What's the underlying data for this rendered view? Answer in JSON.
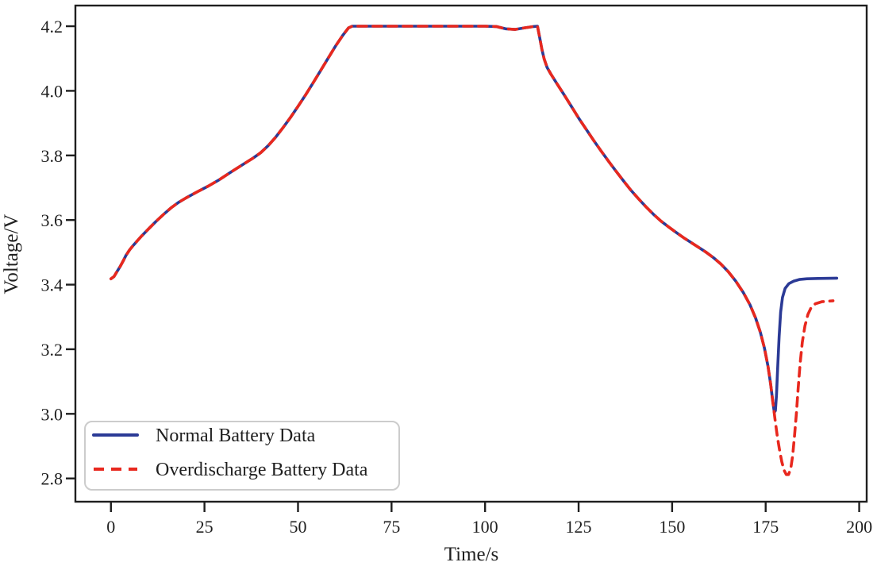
{
  "chart_data": {
    "type": "line",
    "title": "",
    "xlabel": "Time/s",
    "ylabel": "Voltage/V",
    "xlim": [
      -9.5,
      202
    ],
    "ylim": [
      2.728,
      4.264
    ],
    "xticks": [
      0,
      25,
      50,
      75,
      100,
      125,
      150,
      175,
      200
    ],
    "xtick_labels": [
      "0",
      "25",
      "50",
      "75",
      "100",
      "125",
      "150",
      "175",
      "200"
    ],
    "yticks": [
      2.8,
      3.0,
      3.2,
      3.4,
      3.6,
      3.8,
      4.0,
      4.2
    ],
    "ytick_labels": [
      "2.8",
      "3.0",
      "3.2",
      "3.4",
      "3.6",
      "3.8",
      "4.0",
      "4.2"
    ],
    "grid": false,
    "legend": {
      "position": "lower-left",
      "entries": [
        "Normal Battery Data",
        "Overdischarge Battery Data"
      ]
    },
    "colors": {
      "axis": "#1f1f1f",
      "background": "#ffffff",
      "legend_border": "#cccccc"
    },
    "series": [
      {
        "name": "Normal Battery Data",
        "color": "#2b3a96",
        "line_style": "solid",
        "points": [
          [
            0,
            3.418
          ],
          [
            0.8,
            3.425
          ],
          [
            1.6,
            3.44
          ],
          [
            2.4,
            3.455
          ],
          [
            3.2,
            3.472
          ],
          [
            4,
            3.49
          ],
          [
            5,
            3.508
          ],
          [
            6,
            3.522
          ],
          [
            7,
            3.535
          ],
          [
            8,
            3.548
          ],
          [
            10,
            3.572
          ],
          [
            12,
            3.595
          ],
          [
            14,
            3.617
          ],
          [
            16,
            3.637
          ],
          [
            18,
            3.654
          ],
          [
            20,
            3.668
          ],
          [
            23,
            3.687
          ],
          [
            26,
            3.705
          ],
          [
            29,
            3.725
          ],
          [
            32,
            3.748
          ],
          [
            35,
            3.77
          ],
          [
            38,
            3.792
          ],
          [
            40,
            3.808
          ],
          [
            42,
            3.83
          ],
          [
            44,
            3.856
          ],
          [
            46,
            3.886
          ],
          [
            48,
            3.918
          ],
          [
            50,
            3.952
          ],
          [
            52,
            3.987
          ],
          [
            54,
            4.024
          ],
          [
            56,
            4.062
          ],
          [
            58,
            4.1
          ],
          [
            60,
            4.138
          ],
          [
            62,
            4.172
          ],
          [
            63.5,
            4.195
          ],
          [
            64.5,
            4.2
          ],
          [
            70,
            4.2
          ],
          [
            80,
            4.2
          ],
          [
            90,
            4.2
          ],
          [
            100,
            4.2
          ],
          [
            103,
            4.199
          ],
          [
            105.5,
            4.192
          ],
          [
            108,
            4.19
          ],
          [
            110.5,
            4.195
          ],
          [
            113,
            4.199
          ],
          [
            114,
            4.2
          ],
          [
            114.6,
            4.165
          ],
          [
            115.2,
            4.128
          ],
          [
            115.8,
            4.098
          ],
          [
            116.6,
            4.072
          ],
          [
            117.6,
            4.052
          ],
          [
            119,
            4.026
          ],
          [
            121,
            3.99
          ],
          [
            123,
            3.953
          ],
          [
            125,
            3.916
          ],
          [
            127,
            3.881
          ],
          [
            129,
            3.847
          ],
          [
            131,
            3.814
          ],
          [
            133,
            3.782
          ],
          [
            135,
            3.751
          ],
          [
            137,
            3.721
          ],
          [
            139,
            3.692
          ],
          [
            141,
            3.666
          ],
          [
            143,
            3.641
          ],
          [
            145,
            3.618
          ],
          [
            147,
            3.597
          ],
          [
            149,
            3.579
          ],
          [
            151,
            3.562
          ],
          [
            153,
            3.546
          ],
          [
            155,
            3.531
          ],
          [
            157,
            3.516
          ],
          [
            159,
            3.501
          ],
          [
            161,
            3.484
          ],
          [
            163,
            3.464
          ],
          [
            165,
            3.44
          ],
          [
            167,
            3.411
          ],
          [
            169,
            3.376
          ],
          [
            170.8,
            3.338
          ],
          [
            172.3,
            3.297
          ],
          [
            173.6,
            3.252
          ],
          [
            174.7,
            3.202
          ],
          [
            175.6,
            3.148
          ],
          [
            176.3,
            3.094
          ],
          [
            176.9,
            3.038
          ],
          [
            177.3,
            3.005
          ],
          [
            177.6,
            3.01
          ],
          [
            177.9,
            3.06
          ],
          [
            178.2,
            3.14
          ],
          [
            178.6,
            3.24
          ],
          [
            179,
            3.315
          ],
          [
            179.5,
            3.36
          ],
          [
            180.2,
            3.388
          ],
          [
            181.2,
            3.403
          ],
          [
            182.5,
            3.411
          ],
          [
            184,
            3.416
          ],
          [
            186,
            3.418
          ],
          [
            189,
            3.419
          ],
          [
            194,
            3.42
          ]
        ]
      },
      {
        "name": "Overdischarge Battery Data",
        "color": "#e8281e",
        "line_style": "dashed",
        "points": [
          [
            0,
            3.418
          ],
          [
            0.8,
            3.425
          ],
          [
            1.6,
            3.44
          ],
          [
            2.4,
            3.455
          ],
          [
            3.2,
            3.472
          ],
          [
            4,
            3.49
          ],
          [
            5,
            3.508
          ],
          [
            6,
            3.522
          ],
          [
            7,
            3.535
          ],
          [
            8,
            3.548
          ],
          [
            10,
            3.572
          ],
          [
            12,
            3.595
          ],
          [
            14,
            3.617
          ],
          [
            16,
            3.637
          ],
          [
            18,
            3.654
          ],
          [
            20,
            3.668
          ],
          [
            23,
            3.687
          ],
          [
            26,
            3.705
          ],
          [
            29,
            3.725
          ],
          [
            32,
            3.748
          ],
          [
            35,
            3.77
          ],
          [
            38,
            3.792
          ],
          [
            40,
            3.808
          ],
          [
            42,
            3.83
          ],
          [
            44,
            3.856
          ],
          [
            46,
            3.886
          ],
          [
            48,
            3.918
          ],
          [
            50,
            3.952
          ],
          [
            52,
            3.987
          ],
          [
            54,
            4.024
          ],
          [
            56,
            4.062
          ],
          [
            58,
            4.1
          ],
          [
            60,
            4.138
          ],
          [
            62,
            4.172
          ],
          [
            63.5,
            4.195
          ],
          [
            64.5,
            4.2
          ],
          [
            70,
            4.2
          ],
          [
            80,
            4.2
          ],
          [
            90,
            4.2
          ],
          [
            100,
            4.2
          ],
          [
            103,
            4.199
          ],
          [
            105.5,
            4.192
          ],
          [
            108,
            4.19
          ],
          [
            110.5,
            4.195
          ],
          [
            113,
            4.199
          ],
          [
            114,
            4.2
          ],
          [
            114.6,
            4.165
          ],
          [
            115.2,
            4.128
          ],
          [
            115.8,
            4.098
          ],
          [
            116.6,
            4.072
          ],
          [
            117.6,
            4.052
          ],
          [
            119,
            4.026
          ],
          [
            121,
            3.99
          ],
          [
            123,
            3.953
          ],
          [
            125,
            3.916
          ],
          [
            127,
            3.881
          ],
          [
            129,
            3.847
          ],
          [
            131,
            3.814
          ],
          [
            133,
            3.782
          ],
          [
            135,
            3.751
          ],
          [
            137,
            3.721
          ],
          [
            139,
            3.692
          ],
          [
            141,
            3.666
          ],
          [
            143,
            3.641
          ],
          [
            145,
            3.618
          ],
          [
            147,
            3.597
          ],
          [
            149,
            3.579
          ],
          [
            151,
            3.562
          ],
          [
            153,
            3.546
          ],
          [
            155,
            3.531
          ],
          [
            157,
            3.516
          ],
          [
            159,
            3.501
          ],
          [
            161,
            3.484
          ],
          [
            163,
            3.464
          ],
          [
            165,
            3.44
          ],
          [
            167,
            3.411
          ],
          [
            169,
            3.376
          ],
          [
            170.8,
            3.338
          ],
          [
            172.3,
            3.297
          ],
          [
            173.6,
            3.252
          ],
          [
            174.7,
            3.202
          ],
          [
            175.6,
            3.148
          ],
          [
            176.3,
            3.094
          ],
          [
            176.9,
            3.038
          ],
          [
            177.5,
            2.983
          ],
          [
            178.1,
            2.932
          ],
          [
            178.7,
            2.888
          ],
          [
            179.3,
            2.852
          ],
          [
            179.9,
            2.826
          ],
          [
            180.5,
            2.812
          ],
          [
            181.1,
            2.812
          ],
          [
            181.7,
            2.83
          ],
          [
            182.2,
            2.87
          ],
          [
            182.7,
            2.93
          ],
          [
            183.2,
            3.0
          ],
          [
            183.7,
            3.08
          ],
          [
            184.2,
            3.155
          ],
          [
            184.8,
            3.222
          ],
          [
            185.5,
            3.272
          ],
          [
            186.3,
            3.308
          ],
          [
            187.2,
            3.33
          ],
          [
            188.3,
            3.341
          ],
          [
            190,
            3.347
          ],
          [
            193,
            3.35
          ]
        ]
      }
    ]
  }
}
